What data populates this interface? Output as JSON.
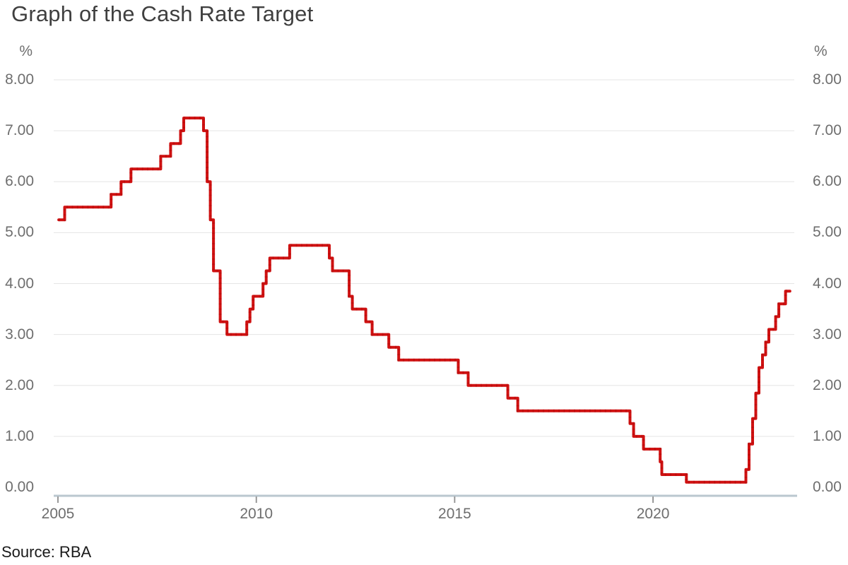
{
  "page": {
    "title": "Graph of the Cash Rate Target",
    "source_label": "Source: RBA"
  },
  "chart_data": {
    "type": "line",
    "title": "Graph of the Cash Rate Target",
    "xlabel": "",
    "ylabel_left": "%",
    "ylabel_right": "%",
    "ylim": [
      0,
      8
    ],
    "x_range": [
      2005.0,
      2023.45
    ],
    "grid": "horizontal",
    "legend": "none",
    "line_color": "#d01111",
    "line_dot_color": "#a80c0c",
    "grid_color": "#e5e5e5",
    "axis_line_color": "#bac7cf",
    "tick_mark_color": "#8e8e8e",
    "label_color": "#6e6e6e",
    "y_tick_labels": [
      "0.00",
      "1.00",
      "2.00",
      "3.00",
      "4.00",
      "5.00",
      "6.00",
      "7.00",
      "8.00"
    ],
    "y_tick_values": [
      0,
      1,
      2,
      3,
      4,
      5,
      6,
      7,
      8
    ],
    "x_tick_labels": [
      "2005",
      "2010",
      "2015",
      "2020"
    ],
    "x_tick_values": [
      2005,
      2010,
      2015,
      2020
    ],
    "series": [
      {
        "name": "Cash Rate Target",
        "unit": "%",
        "step": true,
        "points": [
          [
            2005.02,
            5.25
          ],
          [
            2005.17,
            5.5
          ],
          [
            2006.34,
            5.75
          ],
          [
            2006.59,
            6.0
          ],
          [
            2006.84,
            6.25
          ],
          [
            2007.59,
            6.5
          ],
          [
            2007.84,
            6.75
          ],
          [
            2008.09,
            7.0
          ],
          [
            2008.17,
            7.25
          ],
          [
            2008.67,
            7.0
          ],
          [
            2008.76,
            6.0
          ],
          [
            2008.84,
            5.25
          ],
          [
            2008.92,
            4.25
          ],
          [
            2009.09,
            3.25
          ],
          [
            2009.26,
            3.0
          ],
          [
            2009.76,
            3.25
          ],
          [
            2009.84,
            3.5
          ],
          [
            2009.92,
            3.75
          ],
          [
            2010.17,
            4.0
          ],
          [
            2010.25,
            4.25
          ],
          [
            2010.34,
            4.5
          ],
          [
            2010.84,
            4.75
          ],
          [
            2011.84,
            4.5
          ],
          [
            2011.92,
            4.25
          ],
          [
            2012.34,
            3.75
          ],
          [
            2012.42,
            3.5
          ],
          [
            2012.76,
            3.25
          ],
          [
            2012.92,
            3.0
          ],
          [
            2013.34,
            2.75
          ],
          [
            2013.59,
            2.5
          ],
          [
            2015.09,
            2.25
          ],
          [
            2015.34,
            2.0
          ],
          [
            2016.34,
            1.75
          ],
          [
            2016.59,
            1.5
          ],
          [
            2019.42,
            1.25
          ],
          [
            2019.51,
            1.0
          ],
          [
            2019.76,
            0.75
          ],
          [
            2020.18,
            0.5
          ],
          [
            2020.22,
            0.25
          ],
          [
            2020.84,
            0.1
          ],
          [
            2022.34,
            0.35
          ],
          [
            2022.42,
            0.85
          ],
          [
            2022.51,
            1.35
          ],
          [
            2022.59,
            1.85
          ],
          [
            2022.67,
            2.35
          ],
          [
            2022.76,
            2.6
          ],
          [
            2022.84,
            2.85
          ],
          [
            2022.92,
            3.1
          ],
          [
            2023.09,
            3.35
          ],
          [
            2023.17,
            3.6
          ],
          [
            2023.34,
            3.85
          ],
          [
            2023.45,
            3.85
          ]
        ]
      }
    ]
  }
}
